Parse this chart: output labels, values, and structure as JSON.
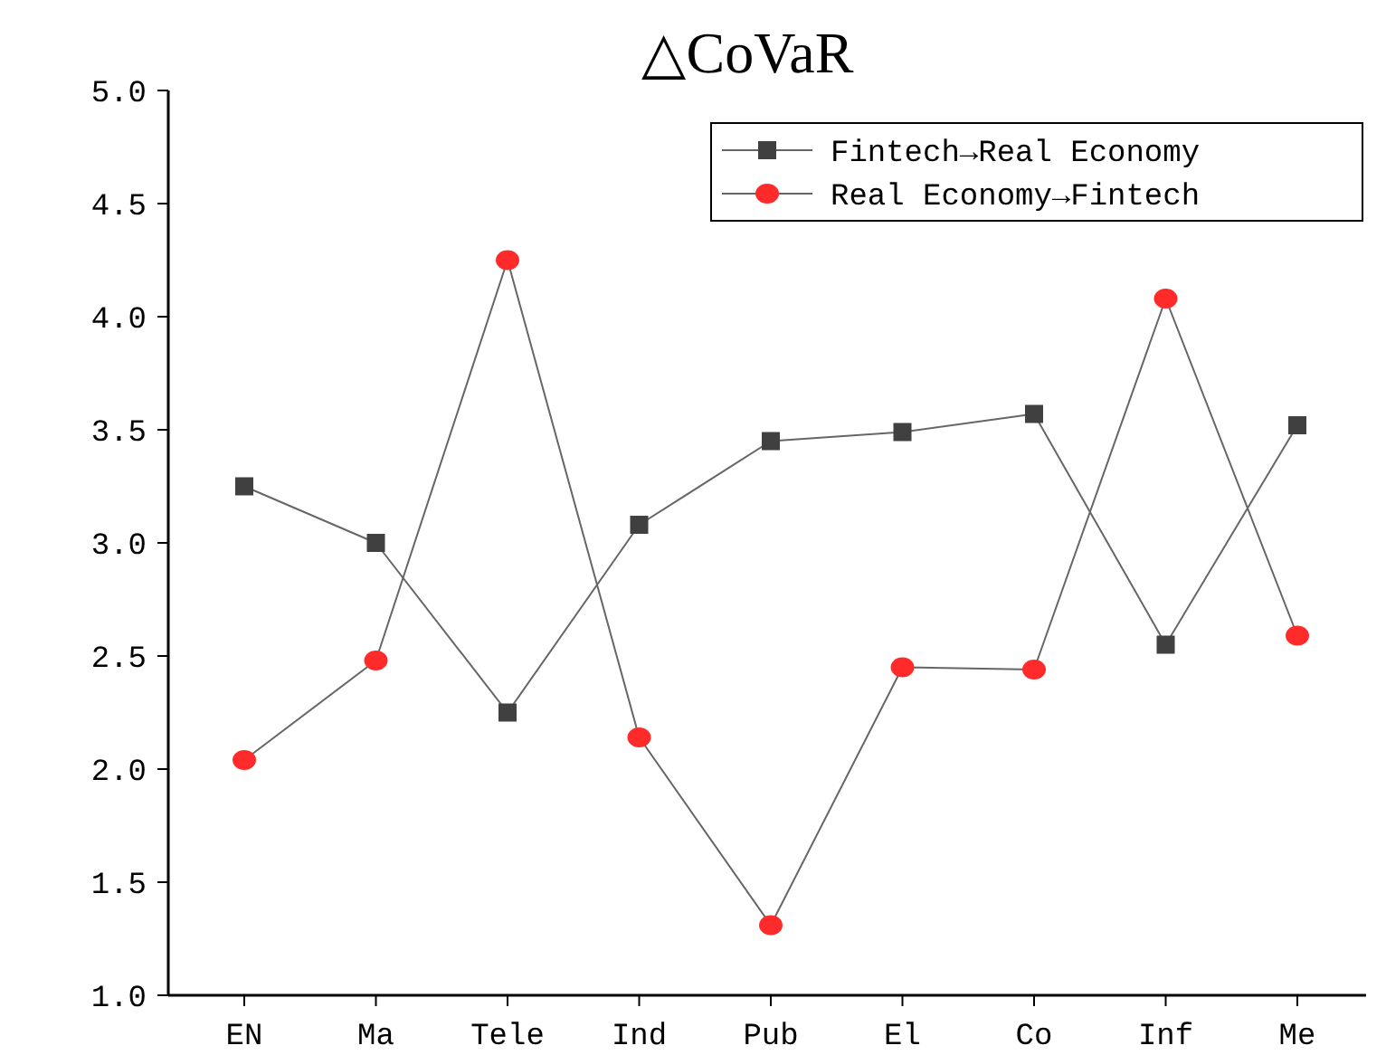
{
  "chart_data": {
    "type": "line",
    "title": "△CoVaR",
    "categories": [
      "EN",
      "Ma",
      "Tele",
      "Ind",
      "Pub",
      "El",
      "Co",
      "Inf",
      "Me"
    ],
    "series": [
      {
        "name": "Fintech→Real Economy",
        "color": "#404040",
        "marker": "square",
        "values": [
          3.25,
          3.0,
          2.25,
          3.08,
          3.45,
          3.49,
          3.57,
          2.55,
          3.52
        ]
      },
      {
        "name": "Real Economy→Fintech",
        "color": "#ff2a2a",
        "marker": "circle",
        "values": [
          2.04,
          2.48,
          4.25,
          2.14,
          1.31,
          2.45,
          2.44,
          4.08,
          2.59
        ]
      }
    ],
    "ylim": [
      1.0,
      5.0
    ],
    "yticks": [
      {
        "value": 1,
        "label": "1.0"
      },
      {
        "value": 1.5,
        "label": "1.5"
      },
      {
        "value": 2,
        "label": "2.0"
      },
      {
        "value": 2.5,
        "label": "2.5"
      },
      {
        "value": 3,
        "label": "3.0"
      },
      {
        "value": 3.5,
        "label": "3.5"
      },
      {
        "value": 4,
        "label": "4.0"
      },
      {
        "value": 4.5,
        "label": "4.5"
      },
      {
        "value": 5,
        "label": "5.0"
      }
    ],
    "legend": "top right",
    "grid": false
  }
}
